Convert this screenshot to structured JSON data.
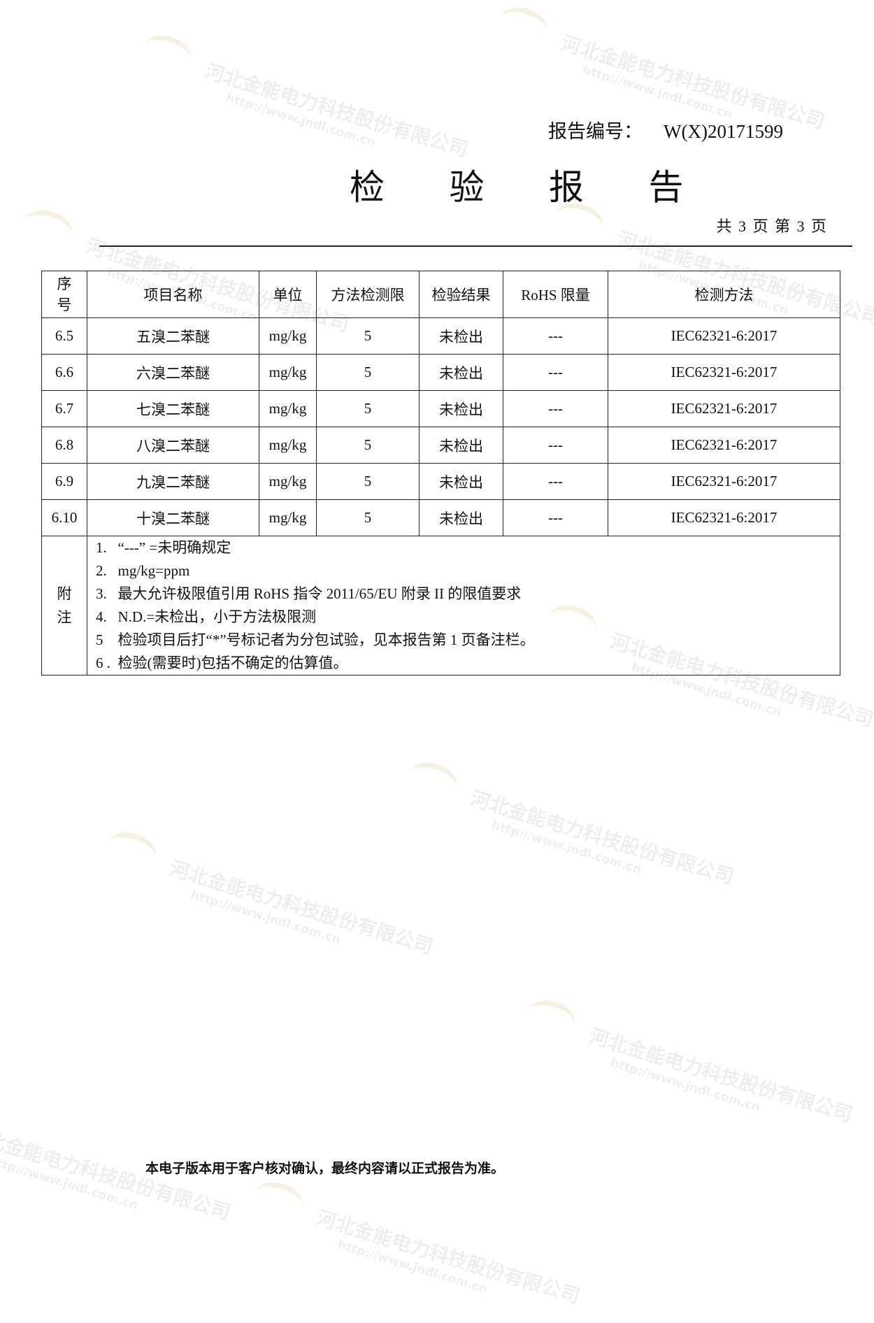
{
  "header": {
    "report_no_label": "报告编号：",
    "report_no": "W(X)20171599",
    "title": "检 验 报 告",
    "pages": "共 3 页  第 3 页"
  },
  "table": {
    "headers": [
      "序\n号",
      "项目名称",
      "单位",
      "方法检测限",
      "检验结果",
      "RoHS 限量",
      "检测方法"
    ],
    "rows": [
      [
        "6.5",
        "五溴二苯醚",
        "mg/kg",
        "5",
        "未检出",
        "---",
        "IEC62321-6:2017"
      ],
      [
        "6.6",
        "六溴二苯醚",
        "mg/kg",
        "5",
        "未检出",
        "---",
        "IEC62321-6:2017"
      ],
      [
        "6.7",
        "七溴二苯醚",
        "mg/kg",
        "5",
        "未检出",
        "---",
        "IEC62321-6:2017"
      ],
      [
        "6.8",
        "八溴二苯醚",
        "mg/kg",
        "5",
        "未检出",
        "---",
        "IEC62321-6:2017"
      ],
      [
        "6.9",
        "九溴二苯醚",
        "mg/kg",
        "5",
        "未检出",
        "---",
        "IEC62321-6:2017"
      ],
      [
        "6.10",
        "十溴二苯醚",
        "mg/kg",
        "5",
        "未检出",
        "---",
        "IEC62321-6:2017"
      ]
    ],
    "notes_label": "附\n注",
    "notes": [
      "1.   “---” =未明确规定",
      "2.   mg/kg=ppm",
      "3.   最大允许极限值引用 RoHS 指令 2011/65/EU 附录 II 的限值要求",
      "4.   N.D.=未检出，小于方法极限测",
      "5    检验项目后打“*”号标记者为分包试验，见本报告第 1 页备注栏。",
      "6 .  检验(需要时)包括不确定的估算值。"
    ]
  },
  "footer": "本电子版本用于客户核对确认，最终内容请以正式报告为准。",
  "watermark": {
    "company": "河北金能电力科技股份有限公司",
    "url": "http://www.jndl.com.cn",
    "logo": "金能电力"
  }
}
